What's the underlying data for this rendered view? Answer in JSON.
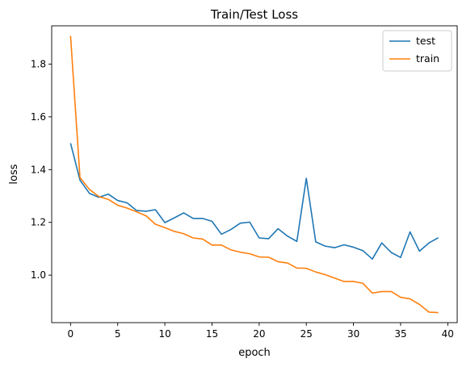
{
  "chart_data": {
    "type": "line",
    "title": "Train/Test Loss",
    "xlabel": "epoch",
    "ylabel": "loss",
    "xlim": [
      -2,
      41
    ],
    "ylim": [
      0.82,
      1.945
    ],
    "xticks": [
      0,
      5,
      10,
      15,
      20,
      25,
      30,
      35,
      40
    ],
    "yticks": [
      1.0,
      1.2,
      1.4,
      1.6,
      1.8
    ],
    "xtick_labels": [
      "0",
      "5",
      "10",
      "15",
      "20",
      "25",
      "30",
      "35",
      "40"
    ],
    "ytick_labels": [
      "1.0",
      "1.2",
      "1.4",
      "1.6",
      "1.8"
    ],
    "grid": false,
    "legend_position": "top-right",
    "x": [
      0,
      1,
      2,
      3,
      4,
      5,
      6,
      7,
      8,
      9,
      10,
      11,
      12,
      13,
      14,
      15,
      16,
      17,
      18,
      19,
      20,
      21,
      22,
      23,
      24,
      25,
      26,
      27,
      28,
      29,
      30,
      31,
      32,
      33,
      34,
      35,
      36,
      37,
      38,
      39
    ],
    "series": [
      {
        "name": "test",
        "color": "#1f77b4",
        "values": [
          1.5,
          1.36,
          1.31,
          1.295,
          1.307,
          1.283,
          1.274,
          1.245,
          1.242,
          1.248,
          1.199,
          1.217,
          1.236,
          1.215,
          1.215,
          1.204,
          1.155,
          1.173,
          1.197,
          1.201,
          1.141,
          1.138,
          1.176,
          1.148,
          1.128,
          1.367,
          1.126,
          1.11,
          1.104,
          1.115,
          1.106,
          1.093,
          1.061,
          1.122,
          1.086,
          1.067,
          1.164,
          1.091,
          1.122,
          1.142
        ]
      },
      {
        "name": "train",
        "color": "#ff7f0e",
        "values": [
          1.907,
          1.37,
          1.325,
          1.298,
          1.287,
          1.265,
          1.254,
          1.24,
          1.225,
          1.193,
          1.18,
          1.166,
          1.157,
          1.141,
          1.137,
          1.114,
          1.114,
          1.096,
          1.087,
          1.081,
          1.069,
          1.068,
          1.051,
          1.046,
          1.027,
          1.026,
          1.012,
          1.002,
          0.989,
          0.976,
          0.976,
          0.969,
          0.932,
          0.938,
          0.938,
          0.916,
          0.91,
          0.889,
          0.86,
          0.858
        ]
      }
    ]
  }
}
